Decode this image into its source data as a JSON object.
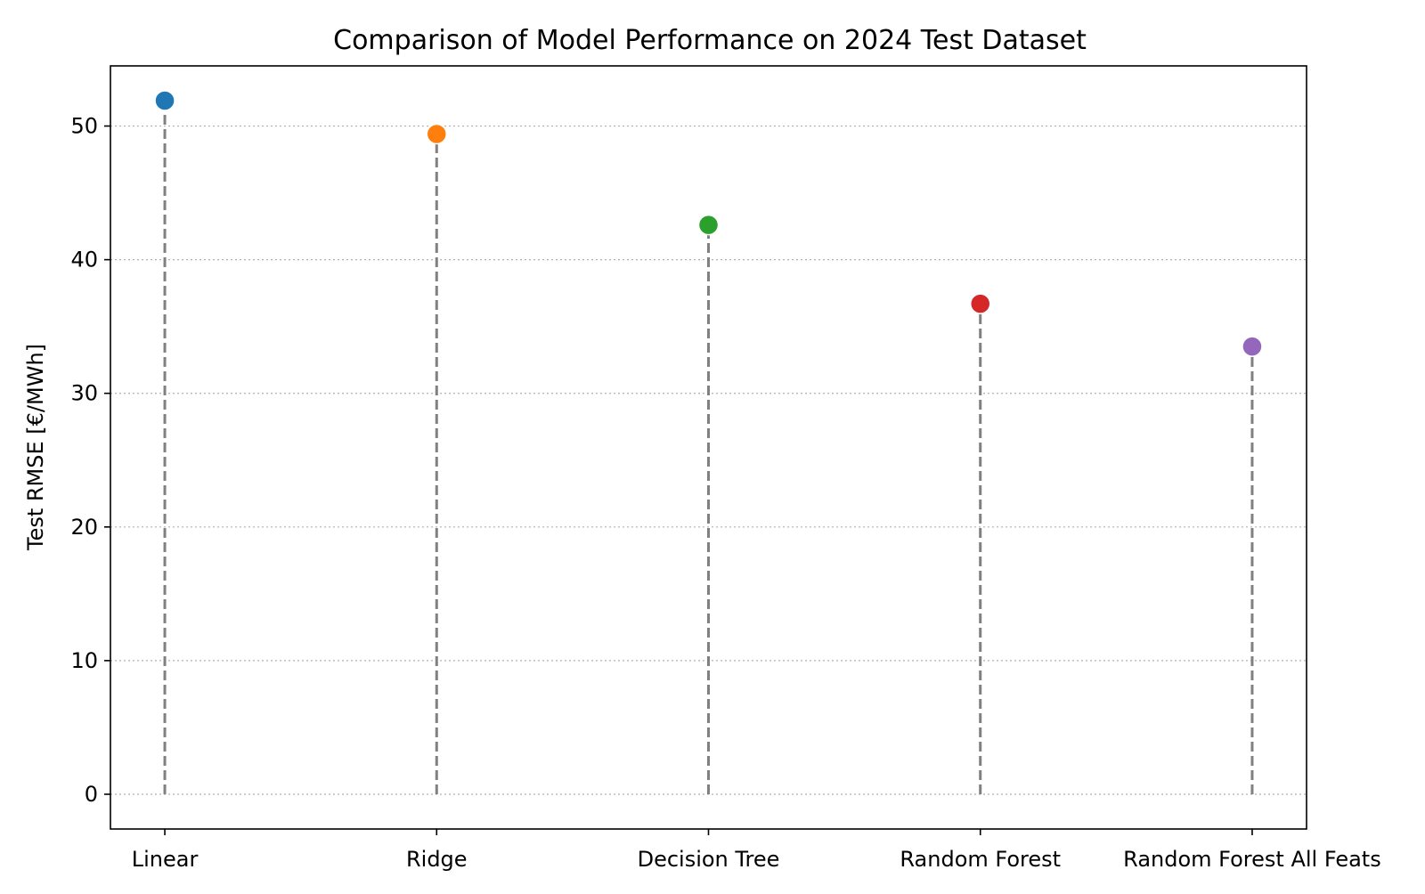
{
  "chart_data": {
    "type": "lollipop",
    "title": "Comparison of Model Performance on 2024 Test Dataset",
    "xlabel": "",
    "ylabel": "Test RMSE [€/MWh]",
    "categories": [
      "Linear",
      "Ridge",
      "Decision Tree",
      "Random Forest",
      "Random Forest All Feats"
    ],
    "values": [
      51.9,
      49.4,
      42.6,
      36.7,
      33.5
    ],
    "colors": [
      "#1f77b4",
      "#ff7f0e",
      "#2ca02c",
      "#d62728",
      "#9467bd"
    ],
    "ylim": [
      -2.6,
      54.5
    ],
    "yticks": [
      0,
      10,
      20,
      30,
      40,
      50
    ],
    "grid": "y-dotted",
    "stem_color": "#808080",
    "stem_style": "dashed"
  }
}
